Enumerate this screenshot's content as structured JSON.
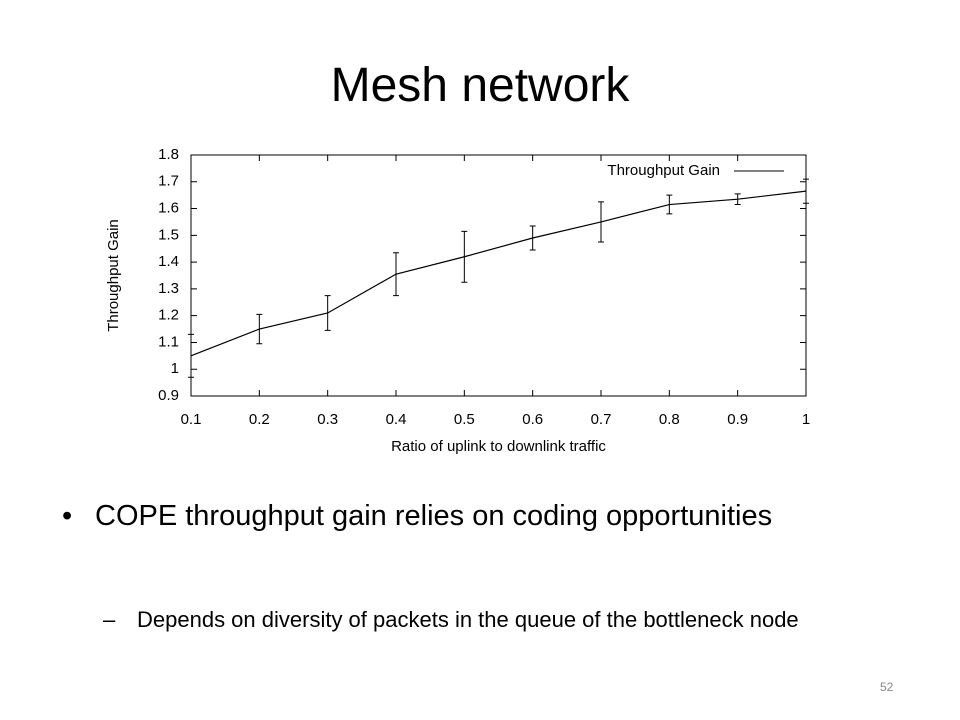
{
  "title": "Mesh network",
  "chart_data": {
    "type": "line",
    "xlabel": "Ratio of uplink to downlink traffic",
    "ylabel": "Throughput Gain",
    "x": [
      0.1,
      0.2,
      0.3,
      0.4,
      0.5,
      0.6,
      0.7,
      0.8,
      0.9,
      1
    ],
    "series": [
      {
        "name": "Throughput Gain",
        "color": "#000000",
        "values": [
          1.05,
          1.15,
          1.21,
          1.355,
          1.42,
          1.49,
          1.55,
          1.615,
          1.635,
          1.665
        ],
        "errors": [
          0.08,
          0.055,
          0.065,
          0.08,
          0.095,
          0.045,
          0.075,
          0.035,
          0.02,
          0.045
        ]
      }
    ],
    "xlim": [
      0.1,
      1
    ],
    "xticks": [
      0.1,
      0.2,
      0.3,
      0.4,
      0.5,
      0.6,
      0.7,
      0.8,
      0.9,
      1
    ],
    "ylim": [
      0.9,
      1.8
    ],
    "yticks": [
      0.9,
      1,
      1.1,
      1.2,
      1.3,
      1.4,
      1.5,
      1.6,
      1.7,
      1.8
    ],
    "legend": "top-right",
    "grid": false
  },
  "bullets": [
    {
      "text": "COPE throughput gain relies on coding opportunities",
      "sub": [
        "Depends on diversity of packets in the queue of the bottleneck node"
      ]
    }
  ],
  "page_number": "52"
}
